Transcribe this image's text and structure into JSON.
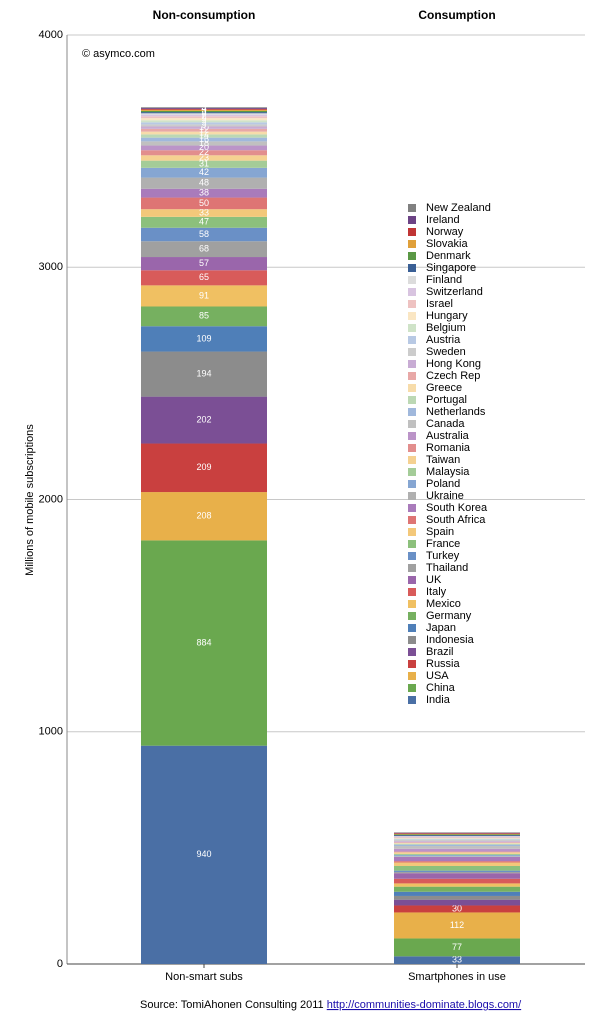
{
  "chart_data": {
    "type": "stacked-bar",
    "column_titles": [
      "Non-consumption",
      "Consumption"
    ],
    "annotation": "© asymco.com",
    "ylabel": "Millions of mobile subscriptions",
    "source": "Source: TomiAhonen Consulting 2011",
    "source_link": "http://communities-dominate.blogs.com/",
    "categories": [
      "Non-smart subs",
      "Smartphones in use"
    ],
    "ylim": [
      0,
      4000
    ],
    "yticks": [
      0,
      1000,
      2000,
      3000,
      4000
    ],
    "grid": true,
    "series": [
      {
        "name": "India",
        "color": "#4a6fa5",
        "values": [
          940,
          33
        ]
      },
      {
        "name": "China",
        "color": "#6aa84f",
        "values": [
          884,
          77
        ]
      },
      {
        "name": "USA",
        "color": "#e8b04a",
        "values": [
          208,
          112
        ]
      },
      {
        "name": "Russia",
        "color": "#c9403f",
        "values": [
          209,
          30
        ]
      },
      {
        "name": "Brazil",
        "color": "#7b4f95",
        "values": [
          202,
          25
        ]
      },
      {
        "name": "Indonesia",
        "color": "#8c8c8c",
        "values": [
          194,
          16
        ]
      },
      {
        "name": "Japan",
        "color": "#4f7fb8",
        "values": [
          109,
          18
        ]
      },
      {
        "name": "Germany",
        "color": "#76b060",
        "values": [
          85,
          22
        ]
      },
      {
        "name": "Mexico",
        "color": "#f0c062",
        "values": [
          91,
          14
        ]
      },
      {
        "name": "Italy",
        "color": "#d85b5a",
        "values": [
          65,
          20
        ]
      },
      {
        "name": "UK",
        "color": "#9a66ab",
        "values": [
          57,
          24
        ]
      },
      {
        "name": "Thailand",
        "color": "#a0a0a0",
        "values": [
          68,
          5
        ]
      },
      {
        "name": "Turkey",
        "color": "#6a90c6",
        "values": [
          58,
          6
        ]
      },
      {
        "name": "France",
        "color": "#8cc07c",
        "values": [
          47,
          20
        ]
      },
      {
        "name": "Spain",
        "color": "#f3c87a",
        "values": [
          33,
          15
        ]
      },
      {
        "name": "South Africa",
        "color": "#de7574",
        "values": [
          50,
          6
        ]
      },
      {
        "name": "South Korea",
        "color": "#a97bbb",
        "values": [
          38,
          18
        ]
      },
      {
        "name": "Ukraine",
        "color": "#b0b0b0",
        "values": [
          48,
          3
        ]
      },
      {
        "name": "Poland",
        "color": "#86a6d2",
        "values": [
          42,
          5
        ]
      },
      {
        "name": "Malaysia",
        "color": "#a4cc98",
        "values": [
          31,
          5
        ]
      },
      {
        "name": "Taiwan",
        "color": "#f5d191",
        "values": [
          23,
          7
        ]
      },
      {
        "name": "Romania",
        "color": "#e28e8d",
        "values": [
          22,
          3
        ]
      },
      {
        "name": "Australia",
        "color": "#bb94c8",
        "values": [
          20,
          12
        ]
      },
      {
        "name": "Canada",
        "color": "#c0c0c0",
        "values": [
          18,
          12
        ]
      },
      {
        "name": "Netherlands",
        "color": "#a0b8dc",
        "values": [
          16,
          6
        ]
      },
      {
        "name": "Portugal",
        "color": "#bcd8b4",
        "values": [
          14,
          4
        ]
      },
      {
        "name": "Greece",
        "color": "#f7dcaa",
        "values": [
          12,
          3
        ]
      },
      {
        "name": "Czech Rep",
        "color": "#e8a8a7",
        "values": [
          12,
          3
        ]
      },
      {
        "name": "Hong Kong",
        "color": "#c8acd4",
        "values": [
          10,
          5
        ]
      },
      {
        "name": "Sweden",
        "color": "#cccccc",
        "values": [
          9,
          5
        ]
      },
      {
        "name": "Austria",
        "color": "#b8c9e4",
        "values": [
          9,
          3
        ]
      },
      {
        "name": "Belgium",
        "color": "#cfe3c8",
        "values": [
          9,
          3
        ]
      },
      {
        "name": "Hungary",
        "color": "#fae6c3",
        "values": [
          9,
          2
        ]
      },
      {
        "name": "Israel",
        "color": "#eec2c1",
        "values": [
          8,
          3
        ]
      },
      {
        "name": "Switzerland",
        "color": "#d8c4e0",
        "values": [
          7,
          4
        ]
      },
      {
        "name": "Finland",
        "color": "#dcdcdc",
        "values": [
          6,
          2
        ]
      },
      {
        "name": "Singapore",
        "color": "#3a5f95",
        "values": [
          5,
          4
        ]
      },
      {
        "name": "Denmark",
        "color": "#5a9845",
        "values": [
          5,
          3
        ]
      },
      {
        "name": "Slovakia",
        "color": "#e0a03a",
        "values": [
          5,
          2
        ]
      },
      {
        "name": "Norway",
        "color": "#c03535",
        "values": [
          4,
          3
        ]
      },
      {
        "name": "Ireland",
        "color": "#6c4385",
        "values": [
          4,
          2
        ]
      },
      {
        "name": "New Zealand",
        "color": "#808080",
        "values": [
          3,
          2
        ]
      }
    ]
  }
}
